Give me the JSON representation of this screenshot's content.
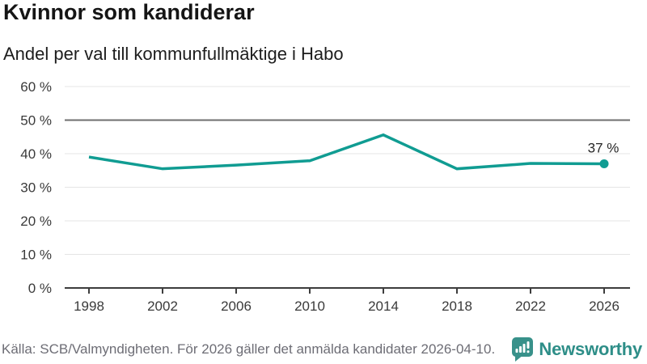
{
  "header": {
    "title": "Kvinnor som kandiderar",
    "subtitle": "Andel per val till kommunfullmäktige i Habo"
  },
  "chart_data": {
    "type": "line",
    "title": "Kvinnor som kandiderar",
    "subtitle": "Andel per val till kommunfullmäktige i Habo",
    "x": [
      1998,
      2002,
      2006,
      2010,
      2014,
      2018,
      2022,
      2026
    ],
    "values": [
      39,
      35.5,
      36.6,
      37.9,
      45.6,
      35.5,
      37.1,
      37
    ],
    "xtick_labels": [
      "1998",
      "2002",
      "2006",
      "2010",
      "2014",
      "2018",
      "2022",
      "2026"
    ],
    "yticks": [
      0,
      10,
      20,
      30,
      40,
      50,
      60
    ],
    "ytick_labels": [
      "0 %",
      "10 %",
      "20 %",
      "30 %",
      "40 %",
      "50 %",
      "60 %"
    ],
    "ylim": [
      0,
      60
    ],
    "xlabel": "",
    "ylabel": "",
    "grid": "horizontal",
    "legend": "none",
    "reference_line": 50,
    "last_point_label": "37 %",
    "colors": {
      "line": "#109c92",
      "point": "#109c92",
      "grid": "#e5e5e5",
      "reference": "#6f6f6f",
      "axis": "#3d3d3d",
      "tick_text": "#3a3a3a",
      "annotation_text": "#262626"
    }
  },
  "footer": {
    "source": "Källa: SCB/Valmyndigheten. För 2026 gäller det anmälda kandidater 2026-04-10.",
    "brand_name": "Newsworthy",
    "brand_color": "#2e8e88",
    "logo_icon": "newsworthy-speech-bubble-barchart-icon"
  }
}
